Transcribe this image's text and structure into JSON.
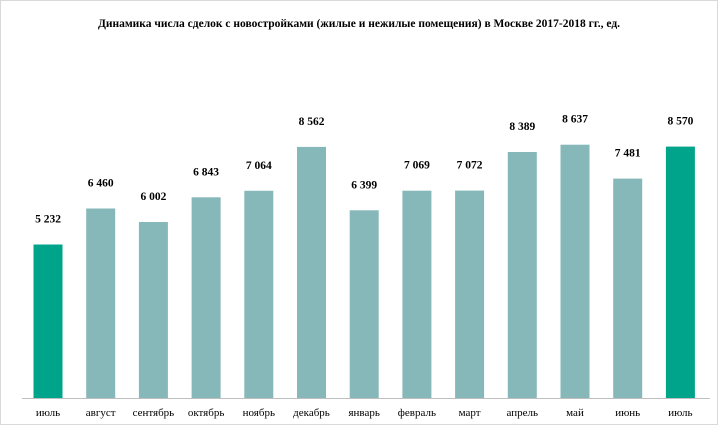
{
  "chart_data": {
    "type": "bar",
    "title": "Динамика числа сделок с новостройками (жилые и нежилые помещения) в Москве 2017-2018 гг., ед.",
    "categories": [
      "июль",
      "август",
      "сентябрь",
      "октябрь",
      "ноябрь",
      "декабрь",
      "январь",
      "февраль",
      "март",
      "апрель",
      "май",
      "июнь",
      "июль"
    ],
    "values": [
      5232,
      6460,
      6002,
      6843,
      7064,
      8562,
      6399,
      7069,
      7072,
      8389,
      8637,
      7481,
      8570
    ],
    "value_labels": [
      "5 232",
      "6 460",
      "6 002",
      "6 843",
      "7 064",
      "8 562",
      "6 399",
      "7 069",
      "7 072",
      "8 389",
      "8 637",
      "7 481",
      "8 570"
    ],
    "xlabel": "",
    "ylabel": "",
    "ylim": [
      0,
      9000
    ],
    "grid": false,
    "legend": "none",
    "colors": {
      "highlight": "#00a48a",
      "regular": "#86b7b9",
      "axis": "#bfbfbf"
    },
    "highlighted_indices": [
      0,
      12
    ]
  }
}
